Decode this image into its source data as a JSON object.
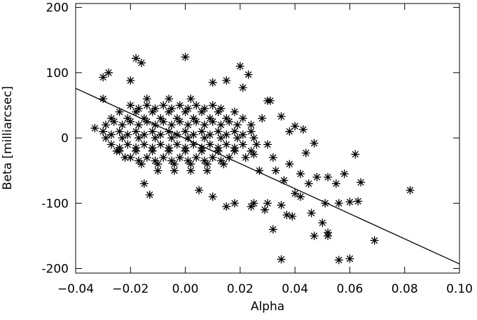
{
  "chart_data": {
    "type": "scatter",
    "x_label": "Alpha",
    "y_label": "Beta [milliarcsec]",
    "xlim": [
      -0.04,
      0.1
    ],
    "ylim": [
      -207,
      206
    ],
    "xticks": [
      {
        "value": -0.04,
        "label": "−0.04"
      },
      {
        "value": -0.02,
        "label": "−0.02"
      },
      {
        "value": 0,
        "label": "0.00"
      },
      {
        "value": 0.02,
        "label": "0.02"
      },
      {
        "value": 0.04,
        "label": "0.04"
      },
      {
        "value": 0.06,
        "label": "0.06"
      },
      {
        "value": 0.08,
        "label": "0.08"
      },
      {
        "value": 0.1,
        "label": "0.10"
      }
    ],
    "yticks": [
      200,
      100,
      0,
      -100,
      -200
    ],
    "color": "#000000",
    "fit_line": {
      "x": [
        -0.04,
        0.1
      ],
      "y": [
        76,
        -193
      ]
    },
    "series": [
      {
        "color": "#000000",
        "x": [
          -0.014,
          -0.006,
          0.002,
          -0.02,
          -0.014,
          -0.008,
          -0.002,
          0.004,
          0.01,
          -0.017,
          -0.011,
          -0.005,
          0.001,
          0.007,
          0.013,
          -0.024,
          -0.018,
          -0.012,
          -0.006,
          0.0,
          0.006,
          0.012,
          0.018,
          -0.027,
          -0.021,
          -0.015,
          -0.009,
          -0.003,
          0.003,
          0.009,
          0.015,
          0.021,
          -0.026,
          -0.02,
          -0.014,
          -0.008,
          -0.002,
          0.004,
          0.01,
          0.016,
          -0.029,
          -0.023,
          -0.017,
          -0.011,
          -0.005,
          0.001,
          0.007,
          0.013,
          0.019,
          0.024,
          -0.03,
          -0.024,
          -0.018,
          -0.012,
          -0.006,
          0.0,
          0.006,
          0.012,
          0.018,
          0.024,
          -0.027,
          -0.021,
          -0.015,
          -0.009,
          -0.003,
          0.003,
          0.009,
          0.015,
          0.021,
          -0.029,
          -0.023,
          -0.017,
          -0.011,
          -0.005,
          0.001,
          0.007,
          0.013,
          0.019,
          0.025,
          -0.027,
          -0.021,
          -0.015,
          -0.009,
          -0.003,
          0.003,
          0.009,
          0.015,
          0.021,
          0.026,
          -0.024,
          -0.018,
          -0.012,
          -0.006,
          0.0,
          0.006,
          0.012,
          0.018,
          -0.024,
          -0.018,
          -0.012,
          -0.006,
          0.0,
          0.006,
          0.012,
          0.018,
          0.024,
          -0.02,
          -0.014,
          -0.008,
          -0.002,
          0.004,
          0.01,
          0.016,
          0.022,
          -0.017,
          -0.011,
          -0.005,
          0.001,
          0.007,
          0.013,
          -0.016,
          -0.01,
          -0.004,
          0.002,
          0.008,
          0.014,
          -0.01,
          -0.004,
          0.002,
          0.008,
          -0.018,
          -0.016,
          0.0,
          -0.028,
          -0.03,
          -0.02,
          0.02,
          0.023,
          0.01,
          0.015,
          0.021,
          0.03,
          0.031,
          0.035,
          0.04,
          0.043,
          0.038,
          0.047,
          0.044,
          0.052,
          0.055,
          0.058,
          0.062,
          0.064,
          0.063,
          0.06,
          0.056,
          0.051,
          0.046,
          0.05,
          0.052,
          0.052,
          0.047,
          0.056,
          0.06,
          0.069,
          0.082,
          0.035,
          0.032,
          0.037,
          0.039,
          0.035,
          0.042,
          0.04,
          0.03,
          0.029,
          0.025,
          0.024,
          0.018,
          0.015,
          0.036,
          0.033,
          0.038,
          0.042,
          0.045,
          0.048,
          -0.013,
          -0.015,
          0.005,
          0.01,
          -0.03,
          -0.033,
          -0.025,
          -0.022,
          0.028,
          0.03,
          0.032,
          0.027,
          0.025
        ],
        "y": [
          60,
          60,
          60,
          50,
          50,
          50,
          50,
          50,
          50,
          45,
          45,
          45,
          45,
          45,
          45,
          40,
          40,
          40,
          40,
          40,
          40,
          40,
          40,
          30,
          30,
          30,
          30,
          30,
          30,
          30,
          30,
          30,
          25,
          25,
          25,
          25,
          25,
          25,
          25,
          25,
          20,
          20,
          20,
          20,
          20,
          20,
          20,
          20,
          20,
          20,
          10,
          10,
          10,
          10,
          10,
          10,
          10,
          10,
          10,
          10,
          5,
          5,
          5,
          5,
          5,
          5,
          5,
          5,
          5,
          0,
          0,
          0,
          0,
          0,
          0,
          0,
          0,
          0,
          0,
          -10,
          -10,
          -10,
          -10,
          -10,
          -10,
          -10,
          -10,
          -10,
          -10,
          -15,
          -15,
          -15,
          -15,
          -15,
          -15,
          -15,
          -15,
          -20,
          -20,
          -20,
          -20,
          -20,
          -20,
          -20,
          -20,
          -20,
          -30,
          -30,
          -30,
          -30,
          -30,
          -30,
          -30,
          -30,
          -35,
          -35,
          -35,
          -35,
          -35,
          -35,
          -40,
          -40,
          -40,
          -40,
          -40,
          -40,
          -50,
          -50,
          -50,
          -50,
          122,
          115,
          124,
          100,
          93,
          88,
          110,
          97,
          85,
          88,
          77,
          57,
          57,
          33,
          18,
          13,
          10,
          -8,
          -23,
          -60,
          -70,
          -55,
          -25,
          -68,
          -97,
          -98,
          -100,
          -100,
          -115,
          -130,
          -145,
          -150,
          -150,
          -187,
          -185,
          -157,
          -80,
          -186,
          -140,
          -118,
          -120,
          -103,
          -90,
          -85,
          -100,
          -110,
          -100,
          -105,
          -100,
          -105,
          -65,
          -50,
          -40,
          -55,
          -70,
          -60,
          -87,
          -70,
          -80,
          -90,
          60,
          15,
          -20,
          -30,
          30,
          -10,
          -30,
          -50,
          -25
        ]
      }
    ]
  }
}
